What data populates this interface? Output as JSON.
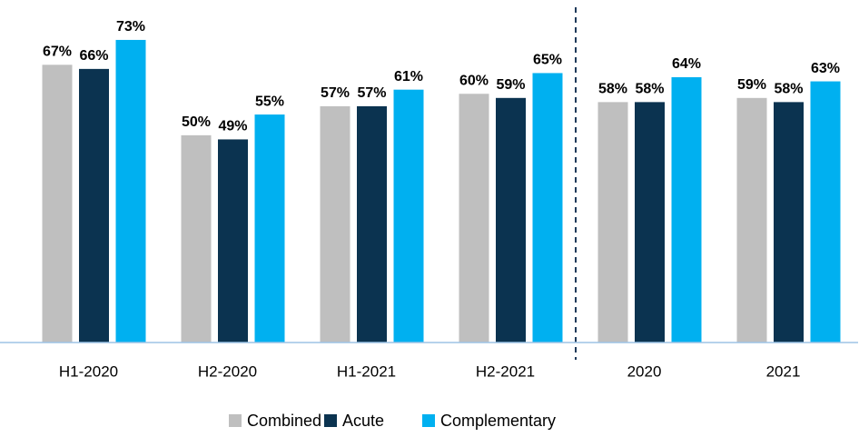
{
  "chart_data": {
    "type": "bar",
    "categories": [
      "H1-2020",
      "H2-2020",
      "H1-2021",
      "H2-2021",
      "2020",
      "2021"
    ],
    "series": [
      {
        "name": "Combined",
        "color": "#bfbfbf",
        "values": [
          67,
          50,
          57,
          60,
          58,
          59
        ],
        "value_labels": [
          "67%",
          "50%",
          "57%",
          "60%",
          "58%",
          "59%"
        ]
      },
      {
        "name": "Acute",
        "color": "#0b3350",
        "values": [
          66,
          49,
          57,
          59,
          58,
          58
        ],
        "value_labels": [
          "66%",
          "49%",
          "57%",
          "59%",
          "58%",
          "58%"
        ]
      },
      {
        "name": "Complementary",
        "color": "#00b0f0",
        "values": [
          73,
          55,
          61,
          65,
          64,
          63
        ],
        "value_labels": [
          "73%",
          "55%",
          "61%",
          "65%",
          "64%",
          "63%"
        ]
      }
    ],
    "ylim": [
      0,
      80
    ]
  }
}
